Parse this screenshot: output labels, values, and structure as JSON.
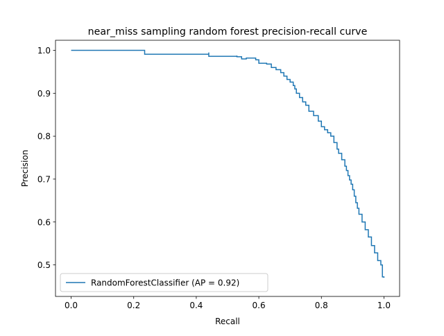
{
  "chart_data": {
    "type": "line",
    "title": "near_miss sampling random forest precision-recall curve",
    "xlabel": "Recall",
    "ylabel": "Precision",
    "xlim": [
      -0.05,
      1.05
    ],
    "ylim": [
      0.4265,
      1.0235
    ],
    "x_ticks": [
      0.0,
      0.2,
      0.4,
      0.6,
      0.8,
      1.0
    ],
    "x_tick_labels": [
      "0.0",
      "0.2",
      "0.4",
      "0.6",
      "0.8",
      "1.0"
    ],
    "y_ticks": [
      0.5,
      0.6,
      0.7,
      0.8,
      0.9,
      1.0
    ],
    "y_tick_labels": [
      "0.5",
      "0.6",
      "0.7",
      "0.8",
      "0.9",
      "1.0"
    ],
    "grid": false,
    "legend_position": "lower-left",
    "series": [
      {
        "name": "RandomForestClassifier (AP = 0.92)",
        "color": "#1f77b4",
        "drawstyle": "steps-post",
        "x": [
          0.0,
          0.235,
          0.235,
          0.44,
          0.44,
          0.53,
          0.53,
          0.545,
          0.56,
          0.59,
          0.6,
          0.625,
          0.64,
          0.655,
          0.67,
          0.68,
          0.69,
          0.7,
          0.71,
          0.715,
          0.72,
          0.73,
          0.74,
          0.75,
          0.76,
          0.775,
          0.79,
          0.8,
          0.81,
          0.82,
          0.83,
          0.84,
          0.85,
          0.855,
          0.865,
          0.875,
          0.88,
          0.885,
          0.89,
          0.895,
          0.9,
          0.905,
          0.91,
          0.915,
          0.92,
          0.93,
          0.94,
          0.95,
          0.96,
          0.97,
          0.98,
          0.99,
          0.995,
          1.0
        ],
        "y": [
          1.0,
          1.0,
          0.991,
          0.995,
          0.986,
          0.988,
          0.985,
          0.98,
          0.982,
          0.978,
          0.97,
          0.968,
          0.96,
          0.955,
          0.948,
          0.94,
          0.932,
          0.926,
          0.918,
          0.91,
          0.9,
          0.89,
          0.88,
          0.872,
          0.858,
          0.848,
          0.835,
          0.822,
          0.815,
          0.808,
          0.8,
          0.785,
          0.77,
          0.76,
          0.745,
          0.73,
          0.72,
          0.708,
          0.698,
          0.688,
          0.675,
          0.66,
          0.645,
          0.632,
          0.618,
          0.6,
          0.582,
          0.565,
          0.545,
          0.528,
          0.51,
          0.5,
          0.472,
          0.47
        ]
      }
    ]
  }
}
